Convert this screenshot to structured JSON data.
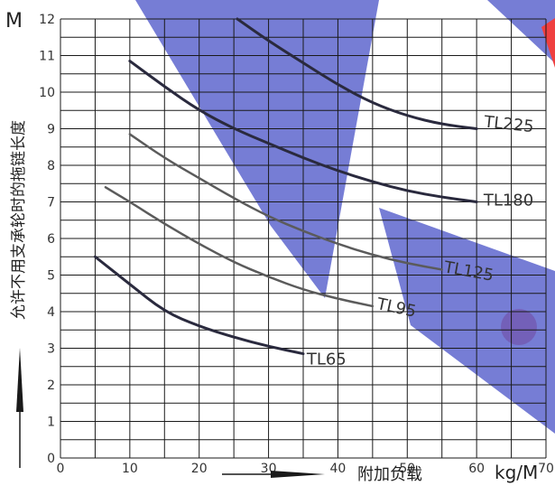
{
  "chart_data": {
    "type": "line",
    "y_unit": "M",
    "x_unit": "kg/M",
    "ylabel": "允许不用支承轮时的拖链长度",
    "xlabel": "附加负载",
    "xlim": [
      0,
      70
    ],
    "ylim": [
      0,
      12
    ],
    "x_ticks": [
      "0",
      "10",
      "20",
      "30",
      "40",
      "50",
      "60",
      "70"
    ],
    "y_ticks": [
      "0",
      "1",
      "2",
      "3",
      "4",
      "5",
      "6",
      "7",
      "8",
      "9",
      "10",
      "11",
      "12"
    ],
    "grid": true,
    "colors": {
      "grid": "#1a1a1a",
      "dark_curve": "#2a2a3e",
      "grey_curve": "#5b5b5b",
      "watermark_blue": "#4b55c8",
      "watermark_red": "#ee2a2a"
    },
    "series": [
      {
        "name": "TL225",
        "color": "#2a2a3e",
        "width": 3,
        "x": [
          25.5,
          30,
          35,
          40,
          45,
          50,
          55,
          60
        ],
        "y": [
          12.0,
          11.4,
          10.8,
          10.2,
          9.7,
          9.35,
          9.12,
          9.0
        ]
      },
      {
        "name": "TL180",
        "color": "#2a2a3e",
        "width": 3,
        "x": [
          10,
          15,
          20,
          25,
          30,
          35,
          40,
          45,
          50,
          55,
          60
        ],
        "y": [
          10.85,
          10.15,
          9.5,
          9.0,
          8.6,
          8.2,
          7.85,
          7.55,
          7.3,
          7.13,
          7.0
        ]
      },
      {
        "name": "TL125",
        "color": "#5b5b5b",
        "width": 2.5,
        "x": [
          10,
          15,
          20,
          25,
          30,
          35,
          40,
          45,
          50,
          55
        ],
        "y": [
          8.85,
          8.2,
          7.65,
          7.1,
          6.6,
          6.2,
          5.85,
          5.55,
          5.32,
          5.15
        ]
      },
      {
        "name": "TL95",
        "color": "#5b5b5b",
        "width": 2.5,
        "x": [
          6.5,
          10,
          15,
          20,
          25,
          30,
          35,
          40,
          45
        ],
        "y": [
          7.4,
          7.0,
          6.4,
          5.85,
          5.35,
          4.95,
          4.6,
          4.35,
          4.15
        ]
      },
      {
        "name": "TL65",
        "color": "#2a2a3e",
        "width": 3,
        "x": [
          5,
          10,
          15,
          20,
          25,
          30,
          35
        ],
        "y": [
          5.5,
          4.75,
          4.0,
          3.6,
          3.3,
          3.05,
          2.85
        ]
      }
    ],
    "labels": {
      "TL225": "TL225",
      "TL180": "TL180",
      "TL125": "TL125",
      "TL95": "TL95",
      "TL65": "TL65"
    }
  }
}
